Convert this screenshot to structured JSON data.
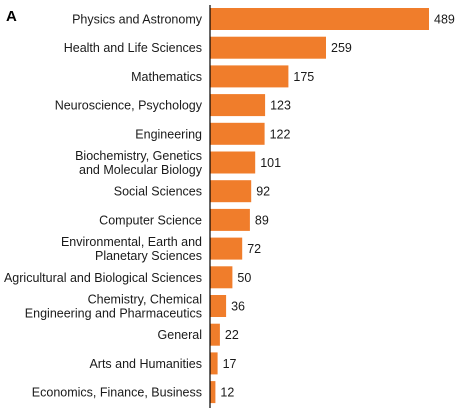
{
  "panel_label": "A",
  "colors": {
    "bar": "#F07D2B",
    "axis": "#000000",
    "text": "#1a1a1a"
  },
  "chart_data": {
    "type": "bar",
    "orientation": "horizontal",
    "title": "",
    "xlabel": "",
    "ylabel": "",
    "categories": [
      [
        "Physics and Astronomy"
      ],
      [
        "Health and Life Sciences"
      ],
      [
        "Mathematics"
      ],
      [
        "Neuroscience, Psychology"
      ],
      [
        "Engineering"
      ],
      [
        "Biochemistry, Genetics",
        "and Molecular Biology"
      ],
      [
        "Social Sciences"
      ],
      [
        "Computer Science"
      ],
      [
        "Environmental, Earth and",
        "Planetary Sciences"
      ],
      [
        "Agricultural and Biological Sciences"
      ],
      [
        "Chemistry, Chemical",
        "Engineering and Pharmaceutics"
      ],
      [
        "General"
      ],
      [
        "Arts and Humanities"
      ],
      [
        "Economics, Finance, Business"
      ]
    ],
    "values": [
      489,
      259,
      175,
      123,
      122,
      101,
      92,
      89,
      72,
      50,
      36,
      22,
      17,
      12
    ],
    "xlim": [
      0,
      489
    ],
    "grid": false,
    "legend": "none"
  }
}
